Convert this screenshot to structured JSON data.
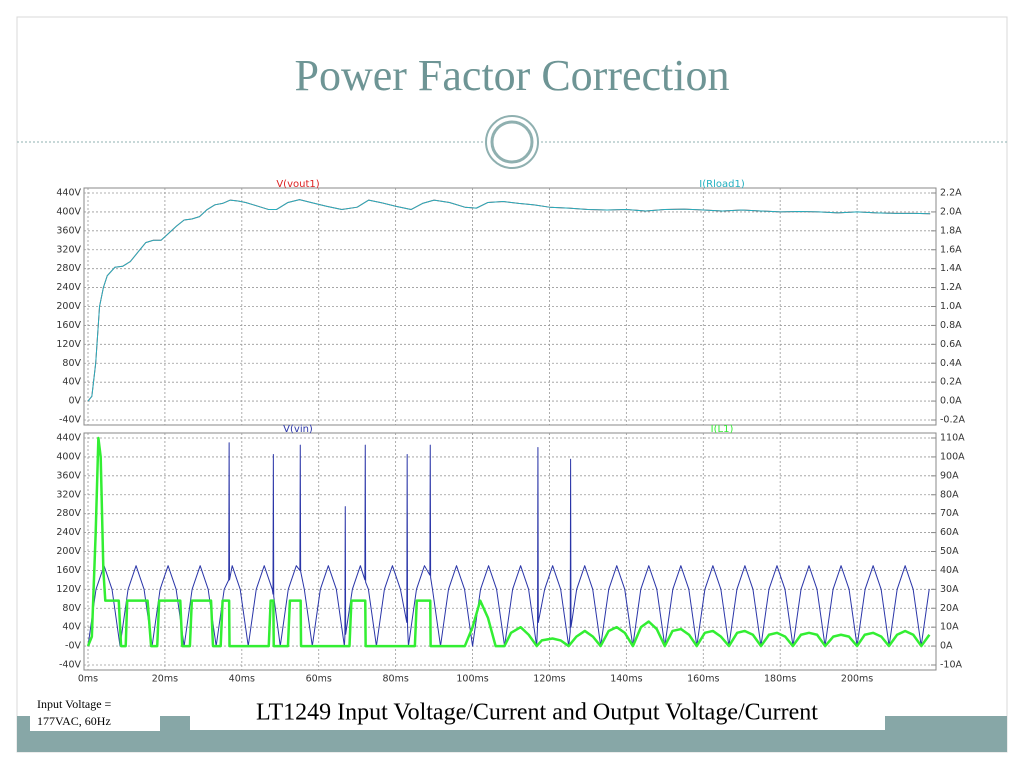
{
  "title": "Power Factor Correction",
  "note": [
    "Input Voltage =",
    "177VAC, 60Hz"
  ],
  "caption": "LT1249 Input Voltage/Current and Output Voltage/Current",
  "chart_data": [
    {
      "type": "line",
      "xlim": [
        0,
        220
      ],
      "ylim": [
        -40,
        440
      ],
      "y2lim": [
        -0.2,
        2.2
      ],
      "grid": true,
      "yticks": [
        {
          "value": -40,
          "label": "-40V"
        },
        {
          "value": 0,
          "label": "0V"
        },
        {
          "value": 40,
          "label": "40V"
        },
        {
          "value": 80,
          "label": "80V"
        },
        {
          "value": 120,
          "label": "120V"
        },
        {
          "value": 160,
          "label": "160V"
        },
        {
          "value": 200,
          "label": "200V"
        },
        {
          "value": 240,
          "label": "240V"
        },
        {
          "value": 280,
          "label": "280V"
        },
        {
          "value": 320,
          "label": "320V"
        },
        {
          "value": 360,
          "label": "360V"
        },
        {
          "value": 400,
          "label": "400V"
        },
        {
          "value": 440,
          "label": "440V"
        }
      ],
      "y2ticks": [
        {
          "value": -0.2,
          "label": "-0.2A"
        },
        {
          "value": 0,
          "label": "0.0A"
        },
        {
          "value": 0.2,
          "label": "0.2A"
        },
        {
          "value": 0.4,
          "label": "0.4A"
        },
        {
          "value": 0.6,
          "label": "0.6A"
        },
        {
          "value": 0.8,
          "label": "0.8A"
        },
        {
          "value": 1.0,
          "label": "1.0A"
        },
        {
          "value": 1.2,
          "label": "1.2A"
        },
        {
          "value": 1.4,
          "label": "1.4A"
        },
        {
          "value": 1.6,
          "label": "1.6A"
        },
        {
          "value": 1.8,
          "label": "1.8A"
        },
        {
          "value": 2.0,
          "label": "2.0A"
        },
        {
          "value": 2.2,
          "label": "2.2A"
        }
      ],
      "x": [
        0,
        1,
        2,
        3,
        4,
        5,
        7,
        9,
        11,
        13,
        15,
        17,
        19,
        21,
        23,
        25,
        27,
        29,
        31,
        33,
        35,
        37,
        39,
        41,
        43,
        45,
        47,
        49,
        52,
        55,
        58,
        62,
        66,
        70,
        73,
        76,
        80,
        84,
        87,
        90,
        94,
        98,
        101,
        104,
        108,
        112,
        116,
        120,
        125,
        130,
        135,
        140,
        145,
        150,
        155,
        160,
        165,
        170,
        175,
        180,
        185,
        190,
        195,
        200,
        205,
        210,
        215,
        219
      ],
      "series": [
        {
          "name": "V(vout1)",
          "color": "#dd2222",
          "values": [
            0,
            10,
            80,
            200,
            240,
            265,
            283,
            285,
            295,
            315,
            335,
            340,
            340,
            355,
            370,
            383,
            385,
            390,
            405,
            415,
            418,
            425,
            423,
            420,
            415,
            410,
            405,
            405,
            420,
            426,
            420,
            412,
            405,
            410,
            425,
            420,
            412,
            405,
            418,
            425,
            420,
            410,
            408,
            420,
            422,
            418,
            415,
            410,
            408,
            405,
            404,
            405,
            402,
            405,
            406,
            404,
            402,
            404,
            402,
            400,
            401,
            400,
            398,
            400,
            398,
            397,
            397,
            396
          ]
        },
        {
          "name": "I(Rload1)",
          "color": "#22b0c0",
          "axis": "y2",
          "values": [
            0,
            0.05,
            0.4,
            1,
            1.2,
            1.325,
            1.415,
            1.425,
            1.475,
            1.575,
            1.675,
            1.7,
            1.7,
            1.775,
            1.85,
            1.915,
            1.925,
            1.95,
            2.025,
            2.075,
            2.09,
            2.125,
            2.115,
            2.1,
            2.075,
            2.05,
            2.025,
            2.025,
            2.1,
            2.13,
            2.1,
            2.06,
            2.025,
            2.05,
            2.125,
            2.1,
            2.06,
            2.025,
            2.09,
            2.125,
            2.1,
            2.05,
            2.04,
            2.1,
            2.11,
            2.09,
            2.075,
            2.05,
            2.04,
            2.025,
            2.02,
            2.025,
            2.01,
            2.025,
            2.03,
            2.02,
            2.01,
            2.02,
            2.01,
            2.0,
            2.005,
            2.0,
            1.99,
            2.0,
            1.99,
            1.985,
            1.985,
            1.98
          ]
        }
      ]
    },
    {
      "type": "line",
      "xlim": [
        0,
        220
      ],
      "ylim": [
        -40,
        440
      ],
      "y2lim": [
        -10,
        110
      ],
      "grid": true,
      "xticks": [
        {
          "value": 0,
          "label": "0ms"
        },
        {
          "value": 20,
          "label": "20ms"
        },
        {
          "value": 40,
          "label": "40ms"
        },
        {
          "value": 60,
          "label": "60ms"
        },
        {
          "value": 80,
          "label": "80ms"
        },
        {
          "value": 100,
          "label": "100ms"
        },
        {
          "value": 120,
          "label": "120ms"
        },
        {
          "value": 140,
          "label": "140ms"
        },
        {
          "value": 160,
          "label": "160ms"
        },
        {
          "value": 180,
          "label": "180ms"
        },
        {
          "value": 200,
          "label": "200ms"
        }
      ],
      "yticks": [
        {
          "value": -40,
          "label": "-40V"
        },
        {
          "value": 0,
          "label": "-0V"
        },
        {
          "value": 40,
          "label": "40V"
        },
        {
          "value": 80,
          "label": "80V"
        },
        {
          "value": 120,
          "label": "120V"
        },
        {
          "value": 160,
          "label": "160V"
        },
        {
          "value": 200,
          "label": "200V"
        },
        {
          "value": 240,
          "label": "240V"
        },
        {
          "value": 280,
          "label": "280V"
        },
        {
          "value": 320,
          "label": "320V"
        },
        {
          "value": 360,
          "label": "360V"
        },
        {
          "value": 400,
          "label": "400V"
        },
        {
          "value": 440,
          "label": "440V"
        }
      ],
      "y2ticks": [
        {
          "value": -10,
          "label": "-10A"
        },
        {
          "value": 0,
          "label": "0A"
        },
        {
          "value": 10,
          "label": "10A"
        },
        {
          "value": 20,
          "label": "20A"
        },
        {
          "value": 30,
          "label": "30A"
        },
        {
          "value": 40,
          "label": "40A"
        },
        {
          "value": 50,
          "label": "50A"
        },
        {
          "value": 60,
          "label": "60A"
        },
        {
          "value": 70,
          "label": "70A"
        },
        {
          "value": 80,
          "label": "80A"
        },
        {
          "value": 90,
          "label": "90A"
        },
        {
          "value": 100,
          "label": "100A"
        },
        {
          "value": 110,
          "label": "110A"
        }
      ],
      "series": [
        {
          "name": "V(vin)",
          "color": "#2a35a8",
          "x": [
            0,
            2.08,
            4.17,
            6.25,
            8.33,
            10.42,
            12.5,
            14.58,
            16.67,
            18.75,
            20.83,
            22.92,
            25,
            27.08,
            29.17,
            31.25,
            33.33,
            35.42,
            36.6,
            36.7,
            36.8,
            37.5,
            39.58,
            41.67,
            43.75,
            45.83,
            47.92,
            48.1,
            48.2,
            48.3,
            50,
            52.08,
            54.17,
            55.1,
            55.2,
            55.3,
            56.25,
            58.33,
            60.42,
            62.5,
            64.58,
            66.67,
            66.8,
            66.9,
            67.0,
            68.75,
            70.83,
            72.0,
            72.1,
            72.2,
            72.92,
            75,
            77.08,
            79.17,
            81.25,
            82.9,
            83.0,
            83.1,
            83.33,
            85.42,
            87.5,
            88.9,
            89.0,
            89.1,
            89.58,
            91.67,
            93.75,
            95.83,
            97.92,
            100,
            102.08,
            104.17,
            106.25,
            108.33,
            110.42,
            112.5,
            114.58,
            116.67,
            116.9,
            117.0,
            117.1,
            118.75,
            120.83,
            122.92,
            125,
            125.4,
            125.5,
            125.6,
            127.08,
            129.17,
            131.25,
            133.33,
            135.42,
            137.5,
            139.58,
            141.67,
            143.75,
            145.83,
            147.92,
            150,
            152.08,
            154.17,
            156.25,
            158.33,
            160.42,
            162.5,
            164.58,
            166.67,
            168.75,
            170.83,
            172.92,
            175,
            177.08,
            179.17,
            181.25,
            183.33,
            185.42,
            187.5,
            189.58,
            191.67,
            193.75,
            195.83,
            197.92,
            200,
            202.08,
            204.17,
            206.25,
            208.33,
            210.42,
            212.5,
            214.58,
            216.67,
            218.75
          ],
          "values": [
            0,
            120,
            170,
            120,
            0,
            120,
            170,
            120,
            0,
            120,
            170,
            120,
            0,
            120,
            170,
            120,
            0,
            120,
            140,
            430,
            140,
            170,
            120,
            0,
            120,
            170,
            120,
            110,
            405,
            105,
            0,
            120,
            170,
            160,
            425,
            158,
            120,
            0,
            120,
            170,
            120,
            0,
            20,
            295,
            25,
            120,
            170,
            140,
            425,
            135,
            120,
            0,
            120,
            170,
            120,
            50,
            405,
            40,
            0,
            120,
            170,
            150,
            425,
            145,
            120,
            0,
            120,
            170,
            120,
            0,
            120,
            170,
            120,
            0,
            120,
            170,
            120,
            0,
            40,
            420,
            50,
            120,
            170,
            120,
            0,
            30,
            395,
            40,
            120,
            170,
            120,
            0,
            120,
            170,
            120,
            0,
            120,
            170,
            120,
            0,
            120,
            170,
            120,
            0,
            120,
            170,
            120,
            0,
            120,
            170,
            120,
            0,
            120,
            170,
            120,
            0,
            120,
            170,
            120,
            0,
            120,
            170,
            120,
            0,
            120,
            170,
            120,
            0,
            120,
            170,
            120,
            0,
            120
          ]
        },
        {
          "name": "I(L1)",
          "color": "#33ee33",
          "axis": "y2",
          "x": [
            0,
            1,
            2,
            2.7,
            3.3,
            4,
            4.5,
            8,
            8.6,
            9.8,
            10.2,
            15.5,
            16.4,
            18,
            18.5,
            24,
            24.5,
            26.5,
            27,
            32,
            32.5,
            34.5,
            35,
            36.7,
            36.8,
            47,
            47.5,
            48.2,
            48.3,
            52,
            52.5,
            55.3,
            55.4,
            68,
            68.5,
            72.1,
            72.2,
            85,
            85.5,
            89,
            89.1,
            98,
            100,
            102,
            104,
            106,
            108.3,
            110,
            112.5,
            114.6,
            116.7,
            118,
            120.8,
            122.9,
            125,
            127,
            129.2,
            131.3,
            133.3,
            135.4,
            137.5,
            139.6,
            141.7,
            143.8,
            145.8,
            147.9,
            150,
            152,
            154.2,
            156.3,
            158.3,
            160.4,
            162.5,
            164.6,
            166.7,
            168.8,
            170.8,
            172.9,
            175,
            177.1,
            179.2,
            181.3,
            183.3,
            185.4,
            187.5,
            189.6,
            191.7,
            193.8,
            195.8,
            197.9,
            200,
            202,
            204.2,
            206.3,
            208.3,
            210.4,
            212.5,
            214.6,
            216.7,
            218.8
          ],
          "values": [
            0,
            5,
            60,
            110,
            100,
            40,
            24,
            24,
            0,
            0,
            24,
            24,
            0,
            0,
            24,
            24,
            0,
            0,
            24,
            24,
            0,
            0,
            24,
            24,
            0,
            0,
            24,
            24,
            0,
            0,
            24,
            24,
            0,
            0,
            24,
            24,
            0,
            0,
            24,
            24,
            0,
            0,
            10,
            24,
            15,
            0,
            0,
            7,
            10,
            6,
            0,
            3,
            4,
            3,
            0,
            5,
            8,
            5,
            0,
            8,
            10,
            7,
            0,
            10,
            13,
            9,
            0,
            8,
            9,
            6,
            0,
            7,
            8,
            5,
            0,
            7,
            8,
            6,
            0,
            6,
            7,
            5,
            0,
            6,
            7,
            6,
            0,
            5,
            6,
            5,
            0,
            6,
            7,
            5,
            0,
            6,
            8,
            6,
            0,
            6
          ]
        }
      ]
    }
  ]
}
